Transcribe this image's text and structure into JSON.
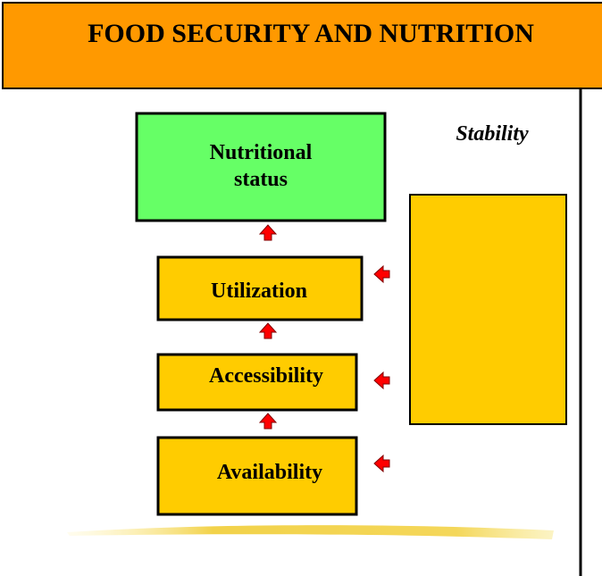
{
  "header": {
    "title": "FOOD SECURITY AND NUTRITION"
  },
  "stability_label": "Stability",
  "nodes": [
    {
      "label": "Nutritional status"
    },
    {
      "label": "Utilization"
    },
    {
      "label": "Accessibility"
    },
    {
      "label": "Availability"
    }
  ]
}
